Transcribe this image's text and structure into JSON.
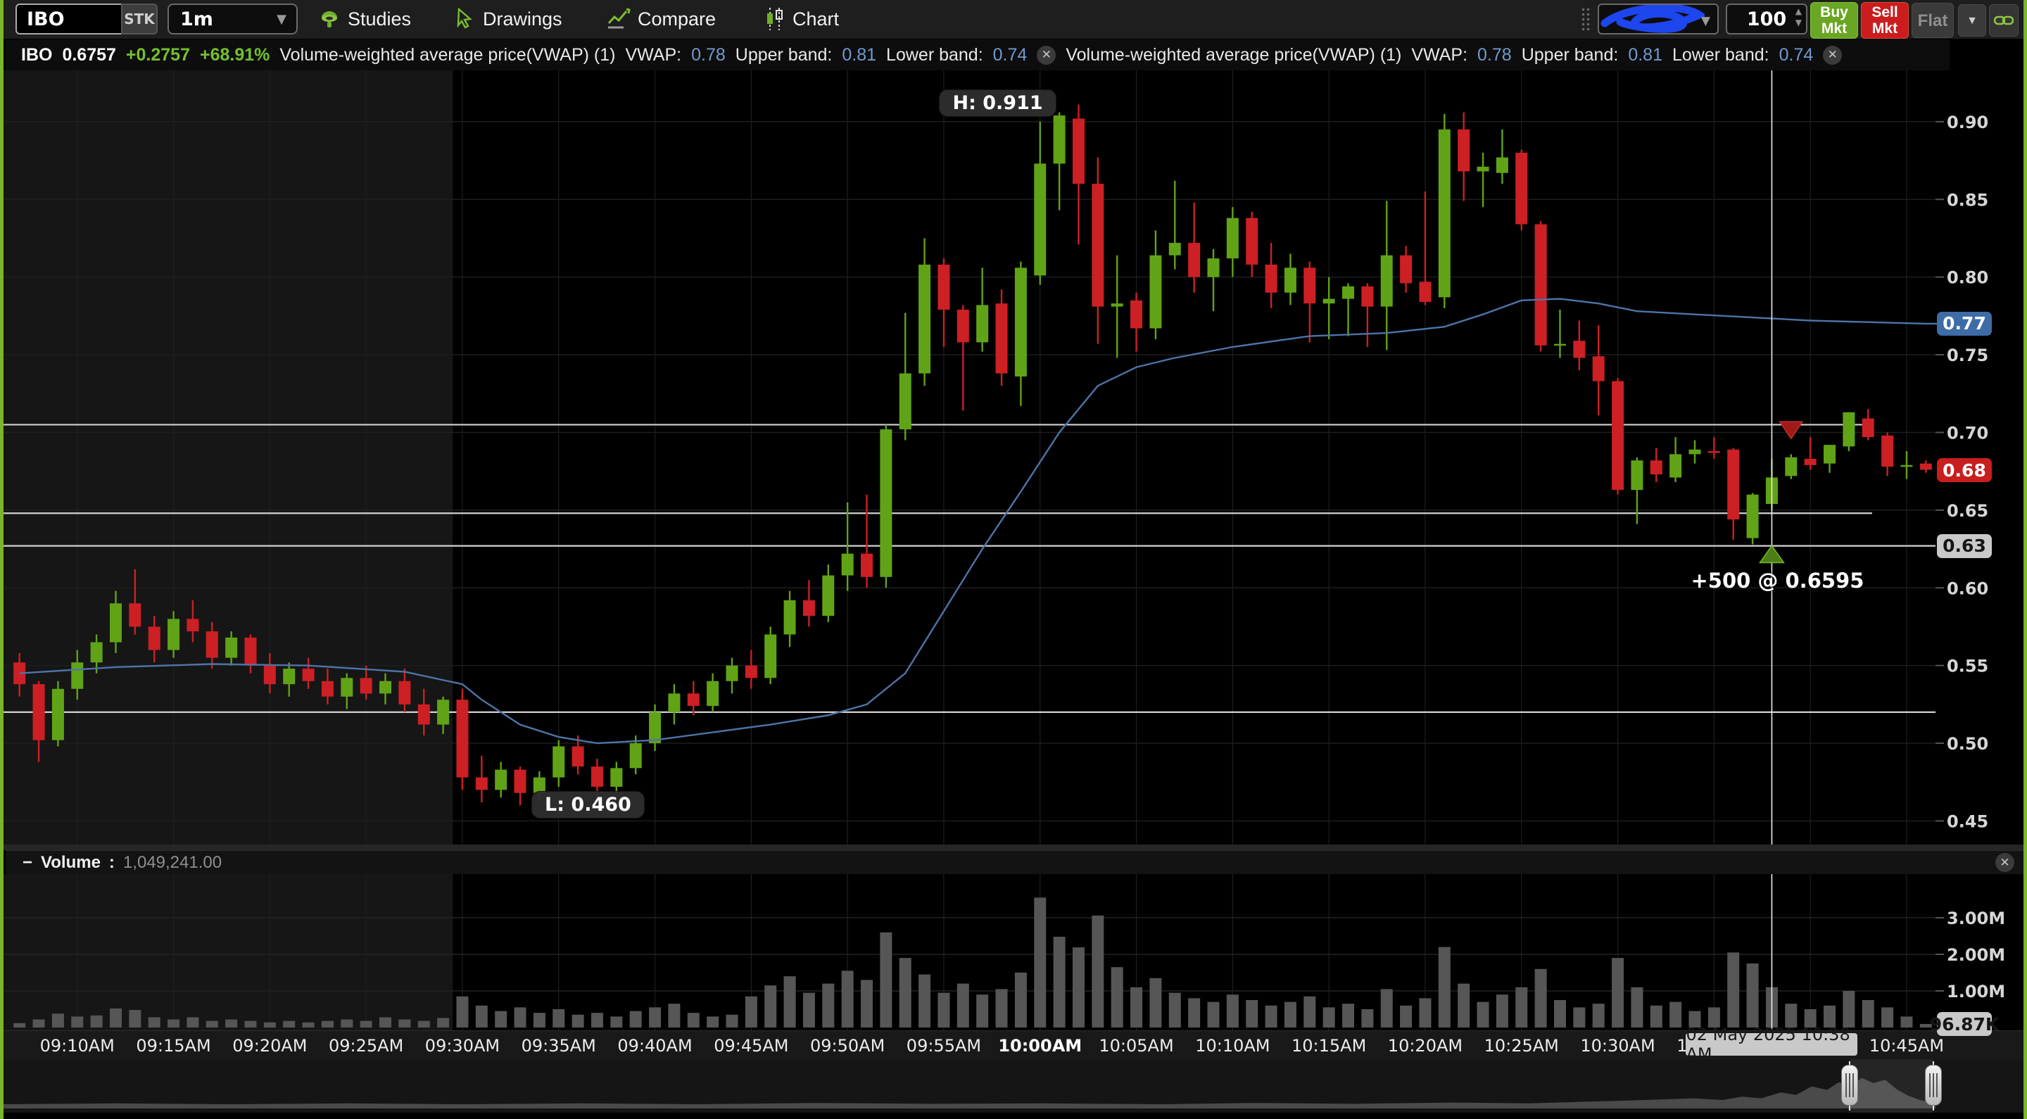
{
  "toolbar": {
    "symbol": "IBO",
    "sec_type": "STK",
    "interval": "1m",
    "menu": [
      "Studies",
      "Drawings",
      "Compare",
      "Chart"
    ],
    "quantity": "100",
    "buy_line1": "Buy",
    "buy_line2": "Mkt",
    "sell_line1": "Sell",
    "sell_line2": "Mkt",
    "flat_label": "Flat"
  },
  "legend": {
    "symbol": "IBO",
    "last": "0.6757",
    "change": "+0.2757",
    "change_pct": "+68.91%",
    "studies": [
      {
        "name": "Volume-weighted average price(VWAP) (1)",
        "vwap_label": "VWAP:",
        "vwap": "0.78",
        "upper_label": "Upper band:",
        "upper": "0.81",
        "lower_label": "Lower band:",
        "lower": "0.74",
        "close": "✕"
      },
      {
        "name": "Volume-weighted average price(VWAP) (1)",
        "vwap_label": "VWAP:",
        "vwap": "0.78",
        "upper_label": "Upper band:",
        "upper": "0.81",
        "lower_label": "Lower band:",
        "lower": "0.74",
        "close": "✕"
      }
    ]
  },
  "price_axis": {
    "ticks": [
      "0.90",
      "0.85",
      "0.80",
      "0.75",
      "0.70",
      "0.65",
      "0.60",
      "0.55",
      "0.50",
      "0.45"
    ],
    "vwap_badge": "0.77",
    "last_badge": "0.68",
    "line_badge": "0.63"
  },
  "annotations": {
    "high": "H: 0.911",
    "low": "L: 0.460",
    "fill": "+500 @ 0.6595"
  },
  "volume_pane": {
    "collapse": "−",
    "title": "Volume",
    "sep": ":",
    "value": "1,049,241.00",
    "ticks": [
      "3.00M",
      "2.00M",
      "1.00M"
    ],
    "last_badge": "96.87K",
    "close": "✕"
  },
  "time_axis": {
    "labels": [
      "09:10AM",
      "09:15AM",
      "09:20AM",
      "09:25AM",
      "09:30AM",
      "09:35AM",
      "09:40AM",
      "09:45AM",
      "09:50AM",
      "09:55AM",
      "10:00AM",
      "10:05AM",
      "10:10AM",
      "10:15AM",
      "10:20AM",
      "10:25AM",
      "10:30AM",
      "10:35AM",
      "10:40AM",
      "10:45AM"
    ],
    "bold_label": "10:00AM",
    "crosshair_badge": "02 May 2025 10:38 AM"
  },
  "colors": {
    "up": "#61a316",
    "down": "#cc2024",
    "vwap_line": "#4d74a8",
    "volume_bar": "#565656",
    "premarket": "#161616",
    "grid": "#1f1f1f",
    "hline": "#d2d2d2",
    "crosshair": "#e9e9e9",
    "accent_green": "#79b62c",
    "badge_blue": "#3e6ca6",
    "badge_red": "#c81e1e",
    "badge_gray": "#c9c9c9"
  },
  "chart_data": {
    "type": "candlestick",
    "symbol": "IBO",
    "interval": "1m",
    "start_time": "09:07 AM",
    "end_time": "10:46 AM",
    "session_open_index": 23,
    "price_range": [
      0.435,
      0.933
    ],
    "price_ticks": [
      0.9,
      0.85,
      0.8,
      0.75,
      0.7,
      0.65,
      0.6,
      0.55,
      0.5,
      0.45
    ],
    "high_annotation": {
      "index": 55,
      "price": 0.911
    },
    "low_annotation": {
      "index": 26,
      "price": 0.46
    },
    "candles": [
      [
        0.552,
        0.558,
        0.53,
        0.538
      ],
      [
        0.538,
        0.54,
        0.488,
        0.502
      ],
      [
        0.502,
        0.54,
        0.498,
        0.535
      ],
      [
        0.535,
        0.56,
        0.528,
        0.552
      ],
      [
        0.552,
        0.57,
        0.545,
        0.565
      ],
      [
        0.565,
        0.598,
        0.558,
        0.59
      ],
      [
        0.59,
        0.612,
        0.57,
        0.575
      ],
      [
        0.575,
        0.582,
        0.552,
        0.56
      ],
      [
        0.56,
        0.585,
        0.555,
        0.58
      ],
      [
        0.58,
        0.592,
        0.565,
        0.572
      ],
      [
        0.572,
        0.578,
        0.548,
        0.555
      ],
      [
        0.555,
        0.572,
        0.55,
        0.568
      ],
      [
        0.568,
        0.57,
        0.545,
        0.55
      ],
      [
        0.55,
        0.558,
        0.532,
        0.538
      ],
      [
        0.538,
        0.552,
        0.53,
        0.548
      ],
      [
        0.548,
        0.555,
        0.535,
        0.54
      ],
      [
        0.54,
        0.548,
        0.525,
        0.53
      ],
      [
        0.53,
        0.545,
        0.522,
        0.542
      ],
      [
        0.542,
        0.55,
        0.528,
        0.532
      ],
      [
        0.532,
        0.545,
        0.525,
        0.54
      ],
      [
        0.54,
        0.548,
        0.52,
        0.525
      ],
      [
        0.525,
        0.535,
        0.505,
        0.512
      ],
      [
        0.512,
        0.53,
        0.506,
        0.528
      ],
      [
        0.528,
        0.535,
        0.47,
        0.478
      ],
      [
        0.478,
        0.492,
        0.462,
        0.47
      ],
      [
        0.47,
        0.488,
        0.465,
        0.483
      ],
      [
        0.483,
        0.485,
        0.46,
        0.468
      ],
      [
        0.468,
        0.482,
        0.463,
        0.478
      ],
      [
        0.478,
        0.502,
        0.472,
        0.498
      ],
      [
        0.498,
        0.505,
        0.48,
        0.485
      ],
      [
        0.485,
        0.49,
        0.465,
        0.472
      ],
      [
        0.472,
        0.488,
        0.468,
        0.484
      ],
      [
        0.484,
        0.505,
        0.48,
        0.5
      ],
      [
        0.5,
        0.525,
        0.495,
        0.52
      ],
      [
        0.52,
        0.538,
        0.512,
        0.532
      ],
      [
        0.532,
        0.54,
        0.518,
        0.524
      ],
      [
        0.524,
        0.545,
        0.52,
        0.54
      ],
      [
        0.54,
        0.555,
        0.532,
        0.55
      ],
      [
        0.55,
        0.56,
        0.535,
        0.542
      ],
      [
        0.542,
        0.575,
        0.538,
        0.57
      ],
      [
        0.57,
        0.598,
        0.562,
        0.592
      ],
      [
        0.592,
        0.605,
        0.575,
        0.582
      ],
      [
        0.582,
        0.615,
        0.578,
        0.608
      ],
      [
        0.608,
        0.655,
        0.598,
        0.622
      ],
      [
        0.622,
        0.66,
        0.6,
        0.607
      ],
      [
        0.607,
        0.705,
        0.6,
        0.702
      ],
      [
        0.702,
        0.777,
        0.695,
        0.738
      ],
      [
        0.738,
        0.825,
        0.73,
        0.808
      ],
      [
        0.808,
        0.812,
        0.755,
        0.779
      ],
      [
        0.779,
        0.782,
        0.714,
        0.758
      ],
      [
        0.758,
        0.806,
        0.752,
        0.782
      ],
      [
        0.783,
        0.792,
        0.73,
        0.738
      ],
      [
        0.736,
        0.81,
        0.717,
        0.806
      ],
      [
        0.801,
        0.9,
        0.795,
        0.873
      ],
      [
        0.873,
        0.906,
        0.843,
        0.904
      ],
      [
        0.902,
        0.911,
        0.821,
        0.86
      ],
      [
        0.86,
        0.877,
        0.757,
        0.781
      ],
      [
        0.781,
        0.814,
        0.748,
        0.783
      ],
      [
        0.785,
        0.79,
        0.752,
        0.767
      ],
      [
        0.767,
        0.83,
        0.76,
        0.814
      ],
      [
        0.814,
        0.862,
        0.805,
        0.822
      ],
      [
        0.822,
        0.848,
        0.79,
        0.8
      ],
      [
        0.8,
        0.818,
        0.778,
        0.812
      ],
      [
        0.812,
        0.845,
        0.8,
        0.838
      ],
      [
        0.838,
        0.842,
        0.8,
        0.808
      ],
      [
        0.808,
        0.822,
        0.78,
        0.79
      ],
      [
        0.79,
        0.815,
        0.782,
        0.806
      ],
      [
        0.806,
        0.81,
        0.758,
        0.783
      ],
      [
        0.783,
        0.8,
        0.76,
        0.786
      ],
      [
        0.786,
        0.796,
        0.762,
        0.794
      ],
      [
        0.794,
        0.796,
        0.755,
        0.781
      ],
      [
        0.781,
        0.849,
        0.753,
        0.814
      ],
      [
        0.814,
        0.82,
        0.79,
        0.796
      ],
      [
        0.797,
        0.855,
        0.782,
        0.784
      ],
      [
        0.787,
        0.905,
        0.78,
        0.895
      ],
      [
        0.895,
        0.906,
        0.849,
        0.868
      ],
      [
        0.868,
        0.88,
        0.845,
        0.871
      ],
      [
        0.867,
        0.895,
        0.86,
        0.877
      ],
      [
        0.88,
        0.882,
        0.83,
        0.834
      ],
      [
        0.834,
        0.836,
        0.752,
        0.756
      ],
      [
        0.756,
        0.779,
        0.748,
        0.757
      ],
      [
        0.759,
        0.772,
        0.74,
        0.748
      ],
      [
        0.749,
        0.769,
        0.711,
        0.733
      ],
      [
        0.733,
        0.735,
        0.66,
        0.663
      ],
      [
        0.663,
        0.684,
        0.641,
        0.682
      ],
      [
        0.682,
        0.69,
        0.668,
        0.673
      ],
      [
        0.671,
        0.697,
        0.668,
        0.686
      ],
      [
        0.686,
        0.695,
        0.68,
        0.689
      ],
      [
        0.688,
        0.697,
        0.683,
        0.687
      ],
      [
        0.689,
        0.69,
        0.631,
        0.644
      ],
      [
        0.632,
        0.661,
        0.628,
        0.66
      ],
      [
        0.654,
        0.683,
        0.65,
        0.671
      ],
      [
        0.672,
        0.686,
        0.67,
        0.684
      ],
      [
        0.683,
        0.697,
        0.676,
        0.679
      ],
      [
        0.68,
        0.692,
        0.674,
        0.692
      ],
      [
        0.691,
        0.713,
        0.688,
        0.713
      ],
      [
        0.709,
        0.715,
        0.695,
        0.697
      ],
      [
        0.698,
        0.7,
        0.672,
        0.678
      ],
      [
        0.678,
        0.688,
        0.67,
        0.679
      ],
      [
        0.68,
        0.682,
        0.674,
        0.676
      ]
    ],
    "volumes": [
      0.12,
      0.22,
      0.38,
      0.3,
      0.33,
      0.52,
      0.48,
      0.28,
      0.22,
      0.28,
      0.18,
      0.22,
      0.18,
      0.14,
      0.18,
      0.14,
      0.18,
      0.22,
      0.18,
      0.28,
      0.22,
      0.18,
      0.26,
      0.85,
      0.6,
      0.45,
      0.55,
      0.4,
      0.5,
      0.35,
      0.4,
      0.3,
      0.45,
      0.55,
      0.65,
      0.4,
      0.3,
      0.35,
      0.85,
      1.15,
      1.4,
      0.95,
      1.2,
      1.55,
      1.3,
      2.6,
      1.9,
      1.45,
      0.95,
      1.2,
      0.9,
      1.05,
      1.5,
      3.55,
      2.48,
      2.19,
      3.06,
      1.65,
      1.1,
      1.35,
      0.95,
      0.8,
      0.7,
      0.9,
      0.75,
      0.6,
      0.7,
      0.85,
      0.55,
      0.65,
      0.5,
      1.05,
      0.6,
      0.8,
      2.2,
      1.2,
      0.7,
      0.9,
      1.1,
      1.6,
      0.75,
      0.55,
      0.65,
      1.9,
      1.1,
      0.6,
      0.7,
      0.45,
      0.55,
      2.05,
      1.75,
      1.1,
      0.65,
      0.5,
      0.6,
      1.0,
      0.75,
      0.55,
      0.3,
      0.097
    ],
    "volume_ticks_m": [
      1,
      2,
      3
    ],
    "last_volume": 96870,
    "vwap": [
      [
        0,
        0.545
      ],
      [
        5,
        0.549
      ],
      [
        10,
        0.551
      ],
      [
        15,
        0.55
      ],
      [
        20,
        0.546
      ],
      [
        23,
        0.538
      ],
      [
        24,
        0.528
      ],
      [
        26,
        0.512
      ],
      [
        28,
        0.504
      ],
      [
        30,
        0.5
      ],
      [
        33,
        0.502
      ],
      [
        36,
        0.507
      ],
      [
        39,
        0.512
      ],
      [
        42,
        0.518
      ],
      [
        44,
        0.525
      ],
      [
        46,
        0.545
      ],
      [
        48,
        0.585
      ],
      [
        50,
        0.625
      ],
      [
        52,
        0.662
      ],
      [
        54,
        0.7
      ],
      [
        56,
        0.73
      ],
      [
        58,
        0.742
      ],
      [
        60,
        0.748
      ],
      [
        63,
        0.755
      ],
      [
        67,
        0.762
      ],
      [
        71,
        0.764
      ],
      [
        74,
        0.768
      ],
      [
        76,
        0.776
      ],
      [
        78,
        0.785
      ],
      [
        80,
        0.786
      ],
      [
        82,
        0.783
      ],
      [
        84,
        0.778
      ],
      [
        87,
        0.776
      ],
      [
        90,
        0.774
      ],
      [
        93,
        0.772
      ],
      [
        96,
        0.771
      ],
      [
        99,
        0.77
      ],
      [
        100.5,
        0.77
      ]
    ],
    "hlines": [
      {
        "price": 0.705,
        "to_axis": false
      },
      {
        "price": 0.648,
        "to_axis": false
      },
      {
        "price": 0.627,
        "to_axis": true,
        "badge": "0.63"
      },
      {
        "price": 0.52,
        "to_axis": true
      }
    ],
    "markers": [
      {
        "type": "buy",
        "index": 91,
        "price": 0.628,
        "label": "+500 @ 0.6595"
      },
      {
        "type": "sell",
        "index": 92,
        "price": 0.696
      }
    ],
    "crosshair_index": 91,
    "navigator": {
      "points": [
        [
          0,
          0.1
        ],
        [
          0.06,
          0.12
        ],
        [
          0.12,
          0.1
        ],
        [
          0.18,
          0.12
        ],
        [
          0.24,
          0.1
        ],
        [
          0.3,
          0.12
        ],
        [
          0.36,
          0.1
        ],
        [
          0.42,
          0.13
        ],
        [
          0.48,
          0.11
        ],
        [
          0.54,
          0.12
        ],
        [
          0.6,
          0.1
        ],
        [
          0.65,
          0.13
        ],
        [
          0.7,
          0.11
        ],
        [
          0.75,
          0.14
        ],
        [
          0.79,
          0.12
        ],
        [
          0.82,
          0.16
        ],
        [
          0.85,
          0.2
        ],
        [
          0.875,
          0.24
        ],
        [
          0.89,
          0.2
        ],
        [
          0.9,
          0.28
        ],
        [
          0.91,
          0.24
        ],
        [
          0.92,
          0.38
        ],
        [
          0.928,
          0.32
        ],
        [
          0.936,
          0.52
        ],
        [
          0.944,
          0.44
        ],
        [
          0.95,
          0.62
        ],
        [
          0.956,
          0.55
        ],
        [
          0.962,
          0.72
        ],
        [
          0.968,
          0.6
        ],
        [
          0.974,
          0.68
        ],
        [
          0.98,
          0.45
        ],
        [
          0.986,
          0.3
        ],
        [
          0.992,
          0.2
        ],
        [
          1,
          0.12
        ]
      ],
      "handles": [
        0.9556,
        0.9989
      ]
    }
  }
}
